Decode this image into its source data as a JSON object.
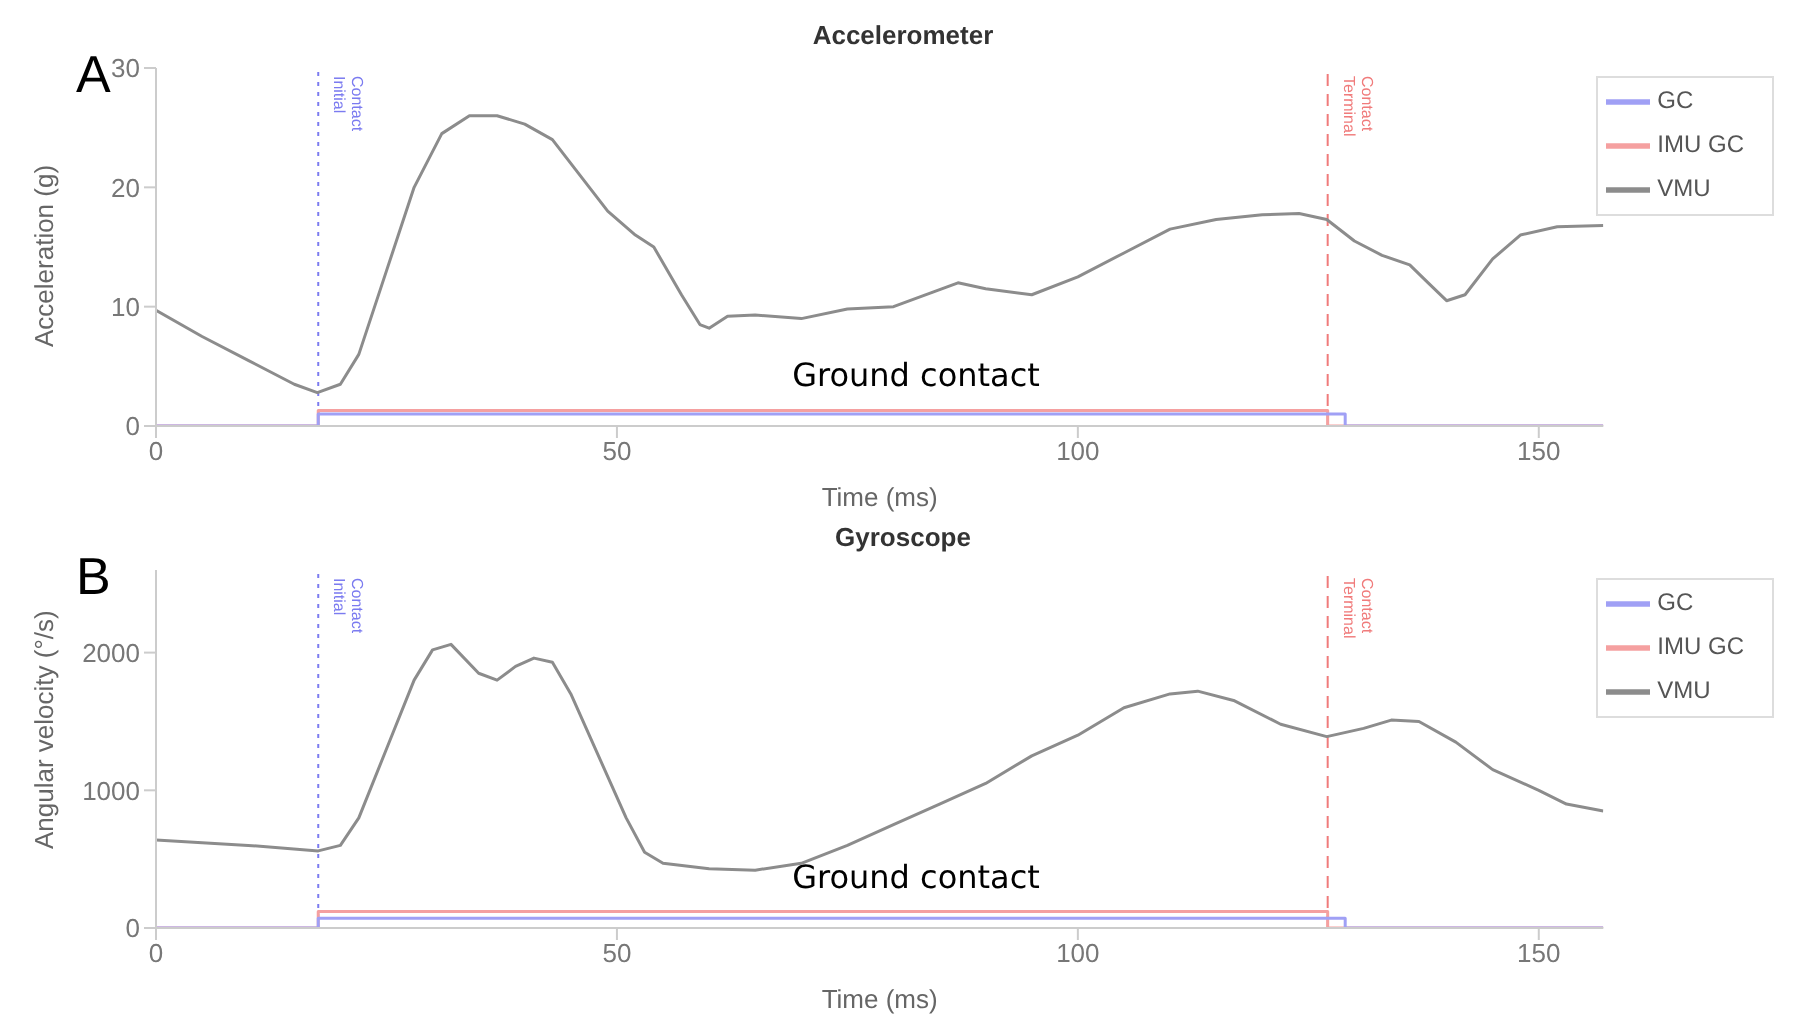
{
  "chart_data": [
    {
      "type": "line",
      "title": "Accelerometer",
      "xlabel": "Time (ms)",
      "ylabel": "Acceleration (g)",
      "xlim": [
        0,
        157
      ],
      "xticks": [
        0,
        50,
        100,
        150
      ],
      "ylim": [
        0,
        30
      ],
      "yticks": [
        0,
        10,
        20,
        30
      ],
      "grid": false,
      "legend": "top right",
      "marker": "none",
      "annotations": [
        "A",
        "Ground contact"
      ],
      "ref_lines": [
        {
          "axis": "x",
          "value": 17.6,
          "label": "Initial Contact",
          "color": "#7b7bf0",
          "line_style": "dotted"
        },
        {
          "axis": "x",
          "value": 127.1,
          "label": "Terminal Contact",
          "color": "#f07b7b",
          "line_style": "dashed"
        }
      ],
      "series": [
        {
          "name": "VMU",
          "color": "#8c8c8c",
          "x": [
            0,
            5,
            10,
            15,
            17.5,
            20,
            22,
            25,
            28,
            31,
            34,
            37,
            40,
            43,
            46,
            49,
            52,
            54,
            57,
            59,
            60,
            62,
            65,
            70,
            75,
            80,
            87,
            90,
            95,
            100,
            105,
            110,
            115,
            120,
            124,
            127,
            130,
            133,
            136,
            138,
            140,
            142,
            145,
            148,
            152,
            157
          ],
          "values": [
            9.7,
            7.5,
            5.5,
            3.5,
            2.8,
            3.5,
            6,
            13,
            20,
            24.5,
            26,
            26,
            25.3,
            24,
            21,
            18,
            16,
            15,
            11,
            8.5,
            8.2,
            9.2,
            9.3,
            9,
            9.8,
            10,
            12,
            11.5,
            11,
            12.5,
            14.5,
            16.5,
            17.3,
            17.7,
            17.8,
            17.3,
            15.5,
            14.3,
            13.5,
            12,
            10.5,
            11,
            14,
            16,
            16.7,
            16.8
          ]
        },
        {
          "name": "IMU GC",
          "type": "step",
          "color": "#f5a0a0",
          "x": [
            0,
            17.6,
            127.1,
            157
          ],
          "values": [
            0,
            1.3,
            0,
            0
          ]
        },
        {
          "name": "GC",
          "type": "step",
          "color": "#a0a0f5",
          "x": [
            0,
            17.6,
            129,
            157
          ],
          "values": [
            0,
            1,
            0,
            0
          ]
        }
      ]
    },
    {
      "type": "line",
      "title": "Gyroscope",
      "xlabel": "Time (ms)",
      "ylabel": "Angular velocity (°/s)",
      "xlim": [
        0,
        157
      ],
      "xticks": [
        0,
        50,
        100,
        150
      ],
      "ylim": [
        0,
        2600
      ],
      "yticks": [
        0,
        1000,
        2000
      ],
      "grid": false,
      "legend": "top right",
      "marker": "none",
      "annotations": [
        "B",
        "Ground contact"
      ],
      "ref_lines": [
        {
          "axis": "x",
          "value": 17.6,
          "label": "Initial Contact",
          "color": "#7b7bf0",
          "line_style": "dotted"
        },
        {
          "axis": "x",
          "value": 127.1,
          "label": "Terminal Contact",
          "color": "#f07b7b",
          "line_style": "dashed"
        }
      ],
      "series": [
        {
          "name": "VMU",
          "color": "#8c8c8c",
          "x": [
            0,
            5,
            10,
            17.6,
            20,
            22,
            25,
            28,
            30,
            32,
            35,
            37,
            39,
            41,
            43,
            45,
            48,
            51,
            53,
            55,
            60,
            65,
            70,
            75,
            80,
            85,
            90,
            95,
            100,
            105,
            110,
            113,
            117,
            122,
            127,
            131,
            134,
            137,
            141,
            145,
            150,
            153,
            157
          ],
          "values": [
            640,
            620,
            600,
            560,
            600,
            800,
            1300,
            1800,
            2020,
            2060,
            1850,
            1800,
            1900,
            1960,
            1930,
            1700,
            1250,
            800,
            550,
            470,
            430,
            420,
            470,
            600,
            750,
            900,
            1050,
            1250,
            1400,
            1600,
            1700,
            1720,
            1650,
            1480,
            1390,
            1450,
            1510,
            1500,
            1350,
            1150,
            1000,
            900,
            850
          ]
        },
        {
          "name": "IMU GC",
          "type": "step",
          "color": "#f5a0a0",
          "x": [
            0,
            17.6,
            127.1,
            157
          ],
          "values": [
            0,
            120,
            0,
            0
          ]
        },
        {
          "name": "GC",
          "type": "step",
          "color": "#a0a0f5",
          "x": [
            0,
            17.6,
            129,
            157
          ],
          "values": [
            0,
            70,
            0,
            0
          ]
        }
      ]
    }
  ]
}
